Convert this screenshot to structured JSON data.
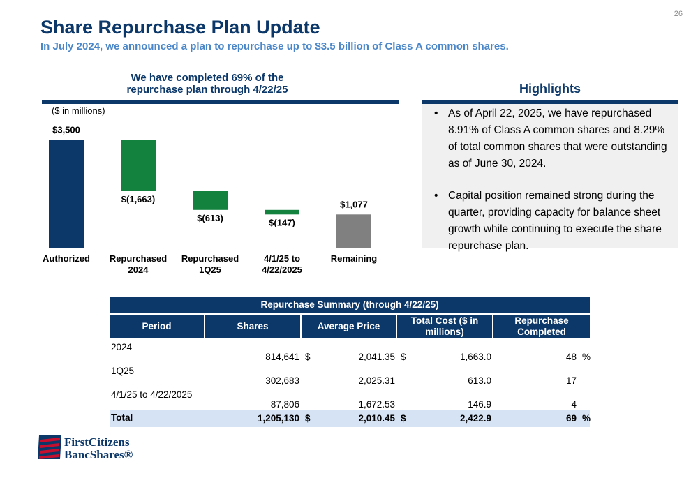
{
  "page_number": "26",
  "header": {
    "title": "Share Repurchase Plan Update",
    "subtitle": "In July 2024, we announced a plan to repurchase up to $3.5 billion of Class A common shares."
  },
  "chart_data": {
    "type": "waterfall",
    "title": "We have completed 69% of the repurchase plan through 4/22/25",
    "unit_label": "($ in millions)",
    "categories": [
      "Authorized",
      "Repurchased 2024",
      "Repurchased 1Q25",
      "4/1/25 to 4/22/2025",
      "Remaining"
    ],
    "values": [
      3500,
      -1663,
      -613,
      -147,
      1077
    ],
    "value_labels": [
      "$3,500",
      "$(1,663)",
      "$(613)",
      "$(147)",
      "$1,077"
    ],
    "colors": [
      "#0b3769",
      "#13823f",
      "#13823f",
      "#13823f",
      "#808080"
    ]
  },
  "highlights": {
    "title": "Highlights",
    "bullets": [
      "As of April 22, 2025, we have repurchased 8.91% of Class A common shares and 8.29% of total common shares that were outstanding as of June 30, 2024.",
      "Capital position remained strong during the quarter, providing capacity for balance sheet growth while continuing to execute the share repurchase plan."
    ]
  },
  "table": {
    "title": "Repurchase Summary (through 4/22/25)",
    "columns": [
      "Period",
      "Shares",
      "Average Price",
      "Total Cost ($ in millions)",
      "Repurchase Completed"
    ],
    "rows": [
      [
        "2024",
        "814,641",
        "$",
        "2,041.35",
        "$",
        "1,663.0",
        "48",
        "%"
      ],
      [
        "1Q25",
        "302,683",
        null,
        "2,025.31",
        null,
        "613.0",
        "17",
        null
      ],
      [
        "4/1/25 to 4/22/2025",
        "87,806",
        null,
        "1,672.53",
        null,
        "146.9",
        "4",
        null
      ]
    ],
    "total": [
      "Total",
      "1,205,130",
      "$",
      "2,010.45",
      "$",
      "2,422.9",
      "69",
      "%"
    ]
  },
  "logo": {
    "line1": "FirstCitizens",
    "line2": "BancShares®"
  }
}
